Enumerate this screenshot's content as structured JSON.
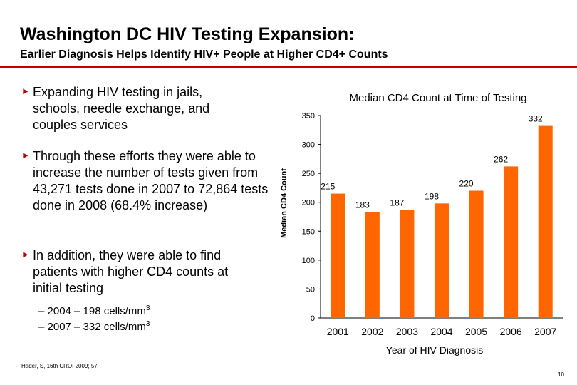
{
  "slide": {
    "title": "Washington DC HIV Testing Expansion:",
    "subtitle": "Earlier Diagnosis Helps Identify HIV+ People at Higher CD4+ Counts",
    "bullets": [
      {
        "mark": "‣",
        "text": "Expanding HIV testing in jails, schools, needle exchange, and couples services"
      },
      {
        "mark": "‣",
        "text": "Through these efforts they were able to increase the number of tests given from 43,271 tests done in 2007 to 72,864 tests done in 2008 (68.4% increase)"
      },
      {
        "mark": "‣",
        "text": "In addition, they were able to find patients with higher CD4 counts at initial testing"
      }
    ],
    "subbullets": [
      {
        "text": "–  2004 – 198 cells/mm",
        "sup": "3"
      },
      {
        "text": "–  2007 – 332 cells/mm",
        "sup": "3"
      }
    ],
    "footer": "Hader, S, 16th CROI 2009; 57",
    "page_number": "10"
  },
  "colors": {
    "accent_red": "#c00000",
    "bar_orange": "#ff6600"
  },
  "chart_data": {
    "type": "bar",
    "title": "Median CD4 Count at Time of Testing",
    "xlabel": "Year of HIV Diagnosis",
    "ylabel": "Median CD4 Count",
    "categories": [
      "2001",
      "2002",
      "2003",
      "2004",
      "2005",
      "2006",
      "2007"
    ],
    "values": [
      215,
      183,
      187,
      198,
      220,
      262,
      332
    ],
    "ylim": [
      0,
      350
    ],
    "yticks": [
      0,
      50,
      100,
      150,
      200,
      250,
      300,
      350
    ],
    "grid": false,
    "legend": "none",
    "data_labels": true
  }
}
